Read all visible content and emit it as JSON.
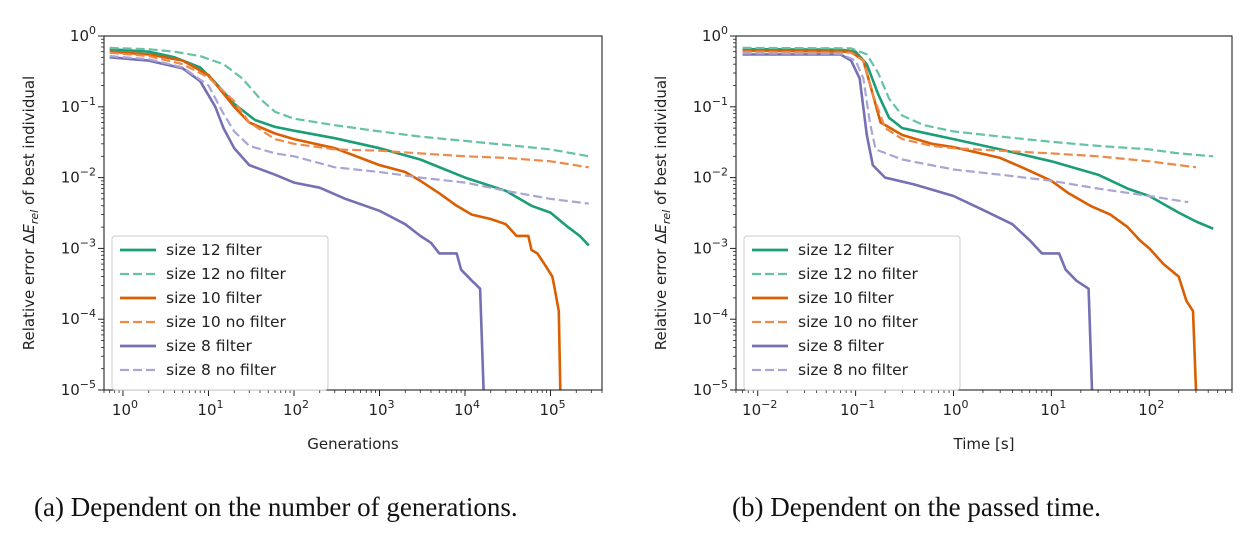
{
  "colors": {
    "green": "#1b9e77",
    "green_light": "#66c2a5",
    "orange": "#d95f02",
    "orange_light": "#ec8a4a",
    "purple": "#7570b3",
    "purple_light": "#a9a5d4"
  },
  "captions": {
    "a": "(a) Dependent on the number of generations.",
    "b": "(b) Dependent on the passed time."
  },
  "chart_data": [
    {
      "type": "line",
      "panel": "a",
      "xlabel": "Generations",
      "ylabel": "Relative error ΔE_rel of best individual",
      "xscale": "log",
      "yscale": "log",
      "xlim": [
        0.6,
        400000
      ],
      "ylim": [
        1e-05,
        1
      ],
      "xticks": [
        {
          "value": 1,
          "exp": "0"
        },
        {
          "value": 10,
          "exp": "1"
        },
        {
          "value": 100,
          "exp": "2"
        },
        {
          "value": 1000,
          "exp": "3"
        },
        {
          "value": 10000,
          "exp": "4"
        },
        {
          "value": 100000,
          "exp": "5"
        }
      ],
      "yticks": [
        {
          "value": 1,
          "exp": "0"
        },
        {
          "value": 0.1,
          "exp": "−1"
        },
        {
          "value": 0.01,
          "exp": "−2"
        },
        {
          "value": 0.001,
          "exp": "−3"
        },
        {
          "value": 0.0001,
          "exp": "−4"
        },
        {
          "value": 1e-05,
          "exp": "−5"
        }
      ],
      "legend_position": "lower-left",
      "series": [
        {
          "name": "size 12 filter",
          "color": "green",
          "dash": false,
          "points": [
            [
              0.7,
              0.65
            ],
            [
              2,
              0.6
            ],
            [
              4,
              0.5
            ],
            [
              8,
              0.36
            ],
            [
              12,
              0.22
            ],
            [
              20,
              0.11
            ],
            [
              35,
              0.065
            ],
            [
              60,
              0.052
            ],
            [
              100,
              0.046
            ],
            [
              300,
              0.036
            ],
            [
              1000,
              0.026
            ],
            [
              3000,
              0.018
            ],
            [
              10000,
              0.01
            ],
            [
              30000,
              0.0065
            ],
            [
              60000,
              0.004
            ],
            [
              100000,
              0.0032
            ],
            [
              160000,
              0.002
            ],
            [
              220000,
              0.0015
            ],
            [
              280000,
              0.0011
            ]
          ]
        },
        {
          "name": "size 12 no filter",
          "color": "green_light",
          "dash": true,
          "points": [
            [
              0.7,
              0.68
            ],
            [
              2,
              0.65
            ],
            [
              4,
              0.6
            ],
            [
              8,
              0.52
            ],
            [
              15,
              0.4
            ],
            [
              25,
              0.25
            ],
            [
              40,
              0.13
            ],
            [
              60,
              0.085
            ],
            [
              100,
              0.068
            ],
            [
              300,
              0.055
            ],
            [
              1000,
              0.045
            ],
            [
              3000,
              0.038
            ],
            [
              10000,
              0.033
            ],
            [
              30000,
              0.029
            ],
            [
              100000,
              0.025
            ],
            [
              280000,
              0.02
            ]
          ]
        },
        {
          "name": "size 10 filter",
          "color": "orange",
          "dash": false,
          "points": [
            [
              0.7,
              0.6
            ],
            [
              2,
              0.55
            ],
            [
              5,
              0.45
            ],
            [
              10,
              0.28
            ],
            [
              20,
              0.1
            ],
            [
              30,
              0.06
            ],
            [
              60,
              0.042
            ],
            [
              100,
              0.035
            ],
            [
              300,
              0.026
            ],
            [
              1000,
              0.015
            ],
            [
              2000,
              0.012
            ],
            [
              3000,
              0.009
            ],
            [
              5000,
              0.006
            ],
            [
              8000,
              0.004
            ],
            [
              12000,
              0.003
            ],
            [
              20000,
              0.0026
            ],
            [
              30000,
              0.0022
            ],
            [
              40000,
              0.0015
            ],
            [
              55000,
              0.0015
            ],
            [
              60000,
              0.00095
            ],
            [
              70000,
              0.00085
            ],
            [
              85000,
              0.0006
            ],
            [
              105000,
              0.0004
            ],
            [
              110000,
              0.0003
            ],
            [
              125000,
              0.00013
            ],
            [
              130000,
              1e-05
            ]
          ]
        },
        {
          "name": "size 10 no filter",
          "color": "orange_light",
          "dash": true,
          "points": [
            [
              0.7,
              0.58
            ],
            [
              2,
              0.52
            ],
            [
              5,
              0.4
            ],
            [
              10,
              0.26
            ],
            [
              20,
              0.12
            ],
            [
              30,
              0.06
            ],
            [
              60,
              0.035
            ],
            [
              100,
              0.03
            ],
            [
              300,
              0.025
            ],
            [
              1000,
              0.024
            ],
            [
              3000,
              0.022
            ],
            [
              10000,
              0.02
            ],
            [
              30000,
              0.019
            ],
            [
              100000,
              0.017
            ],
            [
              280000,
              0.014
            ]
          ]
        },
        {
          "name": "size 8 filter",
          "color": "purple",
          "dash": false,
          "points": [
            [
              0.7,
              0.5
            ],
            [
              2,
              0.45
            ],
            [
              5,
              0.35
            ],
            [
              8,
              0.23
            ],
            [
              12,
              0.1
            ],
            [
              15,
              0.05
            ],
            [
              20,
              0.026
            ],
            [
              30,
              0.015
            ],
            [
              60,
              0.011
            ],
            [
              100,
              0.0085
            ],
            [
              200,
              0.0072
            ],
            [
              400,
              0.005
            ],
            [
              1000,
              0.0034
            ],
            [
              2000,
              0.0022
            ],
            [
              3000,
              0.0015
            ],
            [
              4000,
              0.0012
            ],
            [
              5000,
              0.00085
            ],
            [
              8000,
              0.00085
            ],
            [
              9000,
              0.0005
            ],
            [
              12000,
              0.00035
            ],
            [
              15000,
              0.00027
            ],
            [
              16500,
              1e-05
            ]
          ]
        },
        {
          "name": "size 8 no filter",
          "color": "purple_light",
          "dash": true,
          "points": [
            [
              0.7,
              0.52
            ],
            [
              2,
              0.47
            ],
            [
              5,
              0.36
            ],
            [
              10,
              0.2
            ],
            [
              15,
              0.08
            ],
            [
              20,
              0.045
            ],
            [
              30,
              0.028
            ],
            [
              60,
              0.022
            ],
            [
              100,
              0.02
            ],
            [
              300,
              0.014
            ],
            [
              1000,
              0.012
            ],
            [
              3000,
              0.01
            ],
            [
              10000,
              0.0085
            ],
            [
              30000,
              0.0065
            ],
            [
              100000,
              0.005
            ],
            [
              280000,
              0.0043
            ]
          ]
        }
      ]
    },
    {
      "type": "line",
      "panel": "b",
      "xlabel": "Time [s]",
      "ylabel": "Relative error ΔE_rel of best individual",
      "xscale": "log",
      "yscale": "log",
      "xlim": [
        0.006,
        700
      ],
      "ylim": [
        1e-05,
        1
      ],
      "xticks": [
        {
          "value": 0.01,
          "exp": "−2"
        },
        {
          "value": 0.1,
          "exp": "−1"
        },
        {
          "value": 1,
          "exp": "0"
        },
        {
          "value": 10,
          "exp": "1"
        },
        {
          "value": 100,
          "exp": "2"
        }
      ],
      "yticks": [
        {
          "value": 1,
          "exp": "0"
        },
        {
          "value": 0.1,
          "exp": "−1"
        },
        {
          "value": 0.01,
          "exp": "−2"
        },
        {
          "value": 0.001,
          "exp": "−3"
        },
        {
          "value": 0.0001,
          "exp": "−4"
        },
        {
          "value": 1e-05,
          "exp": "−5"
        }
      ],
      "legend_position": "lower-left",
      "series": [
        {
          "name": "size 12 filter",
          "color": "green",
          "dash": false,
          "points": [
            [
              0.007,
              0.65
            ],
            [
              0.07,
              0.64
            ],
            [
              0.1,
              0.6
            ],
            [
              0.13,
              0.4
            ],
            [
              0.17,
              0.15
            ],
            [
              0.22,
              0.07
            ],
            [
              0.3,
              0.05
            ],
            [
              0.5,
              0.043
            ],
            [
              1,
              0.035
            ],
            [
              3,
              0.025
            ],
            [
              10,
              0.017
            ],
            [
              30,
              0.011
            ],
            [
              60,
              0.007
            ],
            [
              100,
              0.0055
            ],
            [
              200,
              0.0032
            ],
            [
              300,
              0.0024
            ],
            [
              450,
              0.0019
            ]
          ]
        },
        {
          "name": "size 12 no filter",
          "color": "green_light",
          "dash": true,
          "points": [
            [
              0.007,
              0.68
            ],
            [
              0.09,
              0.67
            ],
            [
              0.13,
              0.55
            ],
            [
              0.17,
              0.3
            ],
            [
              0.22,
              0.13
            ],
            [
              0.3,
              0.075
            ],
            [
              0.5,
              0.055
            ],
            [
              1,
              0.045
            ],
            [
              3,
              0.038
            ],
            [
              10,
              0.032
            ],
            [
              30,
              0.028
            ],
            [
              100,
              0.025
            ],
            [
              200,
              0.022
            ],
            [
              450,
              0.02
            ]
          ]
        },
        {
          "name": "size 10 filter",
          "color": "orange",
          "dash": false,
          "points": [
            [
              0.007,
              0.62
            ],
            [
              0.09,
              0.6
            ],
            [
              0.12,
              0.45
            ],
            [
              0.15,
              0.15
            ],
            [
              0.18,
              0.06
            ],
            [
              0.3,
              0.04
            ],
            [
              0.6,
              0.03
            ],
            [
              1,
              0.027
            ],
            [
              3,
              0.019
            ],
            [
              5,
              0.014
            ],
            [
              10,
              0.009
            ],
            [
              15,
              0.006
            ],
            [
              25,
              0.004
            ],
            [
              40,
              0.003
            ],
            [
              60,
              0.002
            ],
            [
              80,
              0.0013
            ],
            [
              100,
              0.001
            ],
            [
              140,
              0.0006
            ],
            [
              200,
              0.0004
            ],
            [
              240,
              0.00018
            ],
            [
              280,
              0.00013
            ],
            [
              300,
              1e-05
            ]
          ]
        },
        {
          "name": "size 10 no filter",
          "color": "orange_light",
          "dash": true,
          "points": [
            [
              0.007,
              0.6
            ],
            [
              0.09,
              0.58
            ],
            [
              0.12,
              0.45
            ],
            [
              0.15,
              0.15
            ],
            [
              0.2,
              0.05
            ],
            [
              0.3,
              0.035
            ],
            [
              0.6,
              0.028
            ],
            [
              1,
              0.026
            ],
            [
              3,
              0.024
            ],
            [
              10,
              0.022
            ],
            [
              30,
              0.02
            ],
            [
              100,
              0.017
            ],
            [
              300,
              0.014
            ]
          ]
        },
        {
          "name": "size 8 filter",
          "color": "purple",
          "dash": false,
          "points": [
            [
              0.007,
              0.55
            ],
            [
              0.07,
              0.55
            ],
            [
              0.09,
              0.45
            ],
            [
              0.11,
              0.25
            ],
            [
              0.13,
              0.04
            ],
            [
              0.15,
              0.015
            ],
            [
              0.2,
              0.01
            ],
            [
              0.4,
              0.008
            ],
            [
              1,
              0.0055
            ],
            [
              2,
              0.0035
            ],
            [
              4,
              0.0022
            ],
            [
              6,
              0.0013
            ],
            [
              8,
              0.00085
            ],
            [
              12,
              0.00085
            ],
            [
              14,
              0.0005
            ],
            [
              18,
              0.00035
            ],
            [
              24,
              0.00027
            ],
            [
              26,
              1e-05
            ]
          ]
        },
        {
          "name": "size 8 no filter",
          "color": "purple_light",
          "dash": true,
          "points": [
            [
              0.007,
              0.57
            ],
            [
              0.07,
              0.56
            ],
            [
              0.1,
              0.45
            ],
            [
              0.12,
              0.25
            ],
            [
              0.14,
              0.06
            ],
            [
              0.16,
              0.025
            ],
            [
              0.3,
              0.018
            ],
            [
              1,
              0.013
            ],
            [
              3,
              0.011
            ],
            [
              10,
              0.009
            ],
            [
              30,
              0.007
            ],
            [
              100,
              0.0055
            ],
            [
              250,
              0.0045
            ]
          ]
        }
      ]
    }
  ]
}
